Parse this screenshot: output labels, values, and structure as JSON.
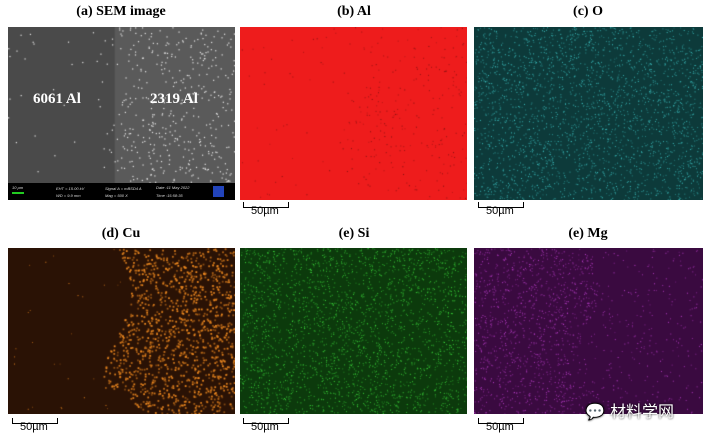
{
  "panels": [
    {
      "title": "(a) SEM image",
      "left_label": "6061 Al",
      "right_label": "2319 Al",
      "colors": {
        "left": "#4a4a4a",
        "right": "#5a5a5a",
        "dot": "#e8e8e8"
      }
    },
    {
      "title": "(b) Al",
      "scale": "50µm",
      "colors": {
        "base": "#ee1c1c",
        "dot": "#7a1010"
      }
    },
    {
      "title": "(c) O",
      "scale": "50µm",
      "colors": {
        "base": "#0d3a3a",
        "dot": "#3fc8c8"
      }
    },
    {
      "title": "(d) Cu",
      "scale": "50µm",
      "colors": {
        "base": "#2a1205",
        "dot": "#f08a20"
      }
    },
    {
      "title": "(e) Si",
      "scale": "50µm",
      "colors": {
        "base": "#0c3a0c",
        "dot": "#3ee03e"
      }
    },
    {
      "title": "(e) Mg",
      "scale": "50µm",
      "colors": {
        "base": "#3a0a40",
        "dot": "#c040d0"
      }
    }
  ],
  "sem_info": {
    "scale": "10 µm",
    "eht": "EHT = 15.00 kV",
    "wd": "WD = 9.9 mm",
    "signal": "Signal A = mBSD4 A",
    "mag": "Mag =   500 X",
    "date": "Date :11 May 2022",
    "time": "Time :15:58:35"
  },
  "watermark": "材料学网"
}
